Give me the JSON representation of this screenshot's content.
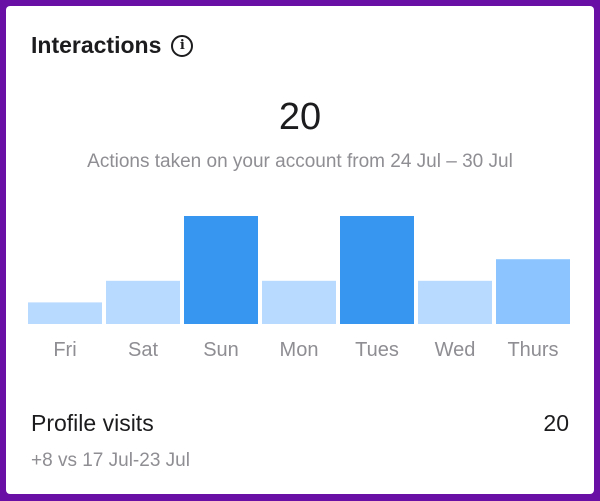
{
  "header": {
    "title": "Interactions",
    "info_icon": "info-circle-icon"
  },
  "summary": {
    "total": "20",
    "caption": "Actions taken on your account from 24 Jul – 30 Jul"
  },
  "chart_data": {
    "type": "bar",
    "categories": [
      "Fri",
      "Sat",
      "Sun",
      "Mon",
      "Tues",
      "Wed",
      "Thurs"
    ],
    "values": [
      1,
      2,
      5,
      2,
      5,
      2,
      3
    ],
    "highlight": [
      false,
      false,
      true,
      false,
      true,
      false,
      false
    ],
    "colors": {
      "default": "#b8daff",
      "highlight": "#3797f0",
      "latest": "#8cc4ff",
      "label": "#8e8e93"
    },
    "title": "",
    "xlabel": "",
    "ylabel": ""
  },
  "profile_visits": {
    "label": "Profile visits",
    "value": "20",
    "comparison": "+8 vs 17 Jul-23 Jul"
  }
}
